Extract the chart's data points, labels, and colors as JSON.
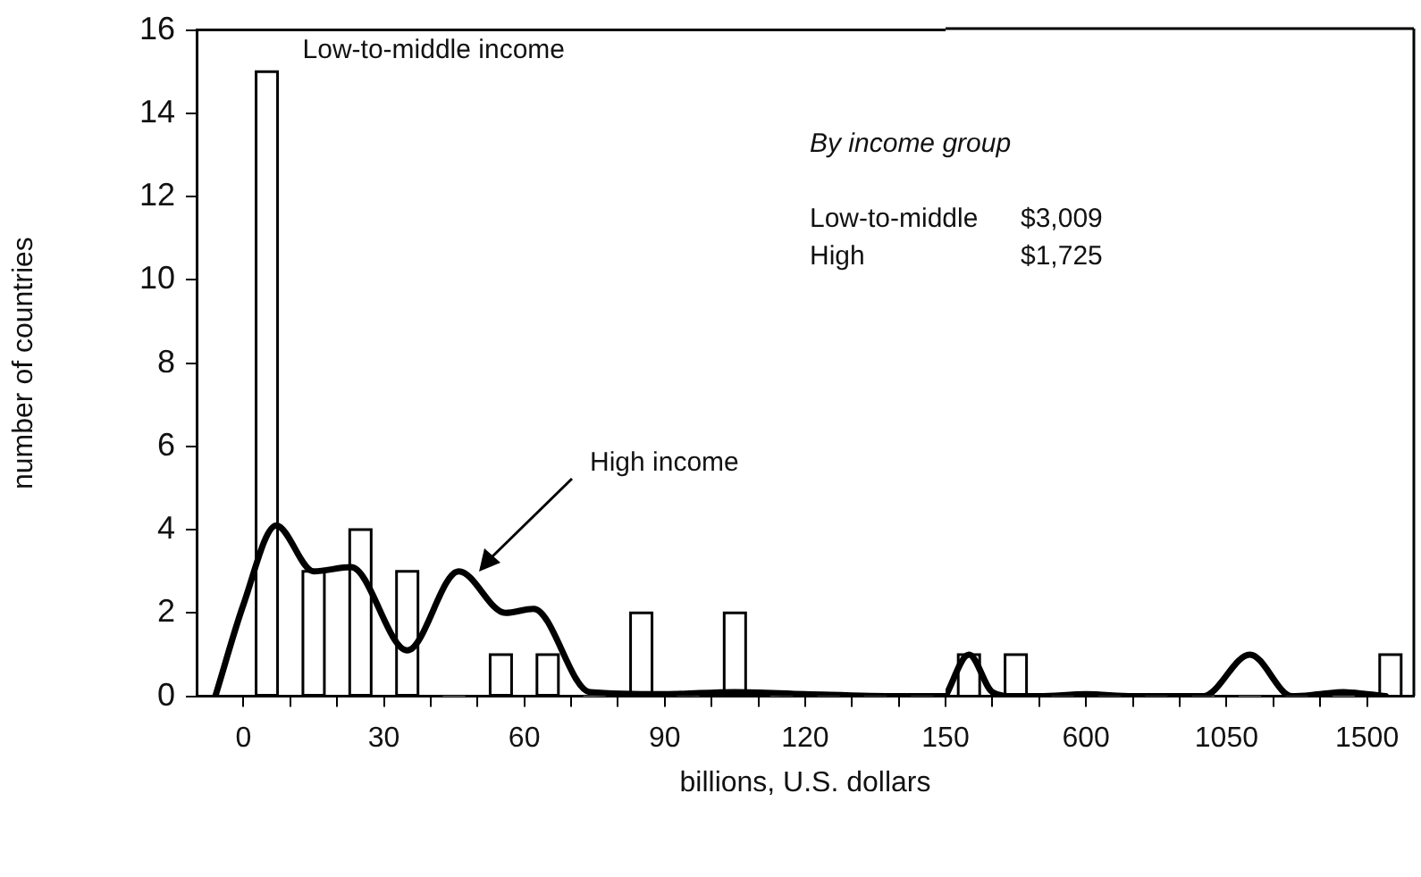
{
  "chart_data": [
    {
      "type": "histogram",
      "xlabel": "billions, U.S. dollars",
      "ylabel": "number of countries",
      "bins": [
        0,
        10,
        20,
        30,
        40,
        50,
        60,
        70,
        80,
        90,
        100,
        110,
        120,
        130,
        140,
        150
      ],
      "series": [
        {
          "name": "Low-to-middle income",
          "color": "#ffffff",
          "values": [
            15,
            3,
            4,
            3,
            0,
            1,
            1,
            0,
            2,
            0,
            2,
            0,
            0,
            0,
            0
          ]
        },
        {
          "type": "line",
          "name": "High income",
          "color": "#000000",
          "x": [
            -6,
            0,
            7,
            15,
            23,
            35,
            46,
            56,
            62,
            74,
            90,
            105,
            120,
            140,
            150
          ],
          "values": [
            0,
            2.2,
            4.1,
            3.0,
            3.1,
            1.1,
            3.0,
            2.0,
            2.1,
            0.1,
            0.05,
            0.1,
            0.05,
            0,
            0
          ]
        }
      ],
      "xlim": [
        -10,
        150
      ],
      "xticks": [
        0,
        {
          "value": 10,
          "label": null
        },
        {
          "value": 20,
          "label": null
        },
        30,
        {
          "value": 40,
          "label": null
        },
        {
          "value": 50,
          "label": null
        },
        60,
        {
          "value": 70,
          "label": null
        },
        {
          "value": 80,
          "label": null
        },
        90,
        {
          "value": 100,
          "label": null
        },
        {
          "value": 110,
          "label": null
        },
        120,
        {
          "value": 130,
          "label": null
        },
        {
          "value": 140,
          "label": null
        },
        150
      ],
      "ylim": [
        0,
        16
      ],
      "yticks": [
        0,
        2,
        4,
        6,
        8,
        10,
        12,
        14,
        16
      ],
      "grid": false,
      "annotations": [
        "By income group",
        "Low-to-middle",
        "$3,009",
        "High",
        "$1,725"
      ]
    },
    {
      "type": "histogram",
      "bins": [
        150,
        300,
        450,
        600,
        750,
        900,
        1050,
        1200,
        1350,
        1500,
        1650
      ],
      "series": [
        {
          "color": "#ffffff",
          "values": [
            1,
            1,
            0,
            0,
            0,
            0,
            0,
            0,
            0,
            1
          ]
        },
        {
          "type": "line",
          "color": "#000000",
          "x": [
            150,
            225,
            300,
            367,
            450,
            600,
            750,
            900,
            975,
            1125,
            1260,
            1350,
            1425,
            1500,
            1560
          ],
          "values": [
            0,
            1.0,
            0.1,
            0,
            0,
            0.05,
            0,
            0,
            0,
            1.0,
            0,
            0.05,
            0.1,
            0.05,
            0
          ]
        }
      ],
      "xlim": [
        150,
        1650
      ],
      "xticks": [
        {
          "value": 300,
          "label": null
        },
        {
          "value": 450,
          "label": null
        },
        600,
        {
          "value": 750,
          "label": null
        },
        {
          "value": 900,
          "label": null
        },
        1050,
        {
          "value": 1200,
          "label": null
        },
        {
          "value": 1350,
          "label": null
        },
        1500
      ],
      "ylim": [
        0,
        16
      ],
      "yticks": [
        0,
        2,
        4,
        6,
        8,
        10,
        12,
        14,
        16
      ],
      "grid": false,
      "tick_labels": "x"
    }
  ]
}
